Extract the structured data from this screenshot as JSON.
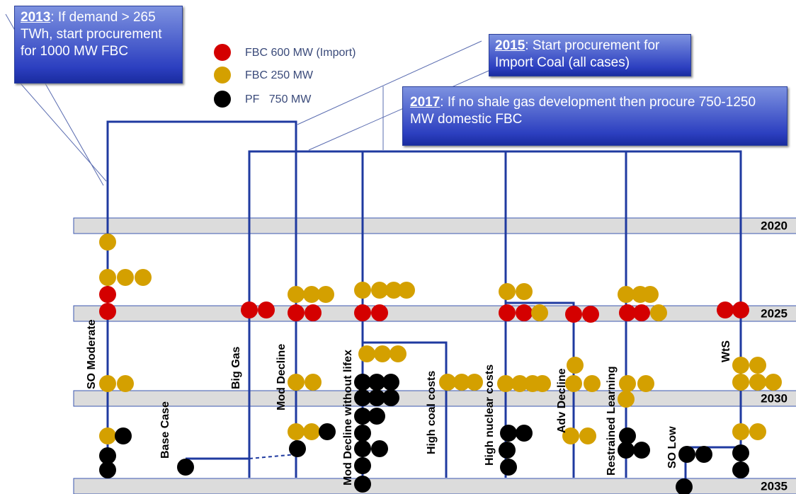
{
  "callouts": [
    {
      "year": "2013",
      "text": ": If demand > 265 TWh, start procurement for 1000 MW FBC"
    },
    {
      "year": "2015",
      "text": ": Start procurement for Import Coal (all cases)"
    },
    {
      "year": "2017",
      "text": ": If no shale gas development then procure 750-1250 MW domestic FBC"
    }
  ],
  "legend": [
    "FBC 600 MW (Import)",
    "FBC 250 MW",
    "PF   750 MW"
  ],
  "years": [
    "2020",
    "2025",
    "2030",
    "2035"
  ],
  "scenarios": [
    "SO Moderate",
    "Base Case",
    "Big Gas",
    "Mod Decline",
    "Mod Decline without lifex",
    "High coal costs",
    "High nuclear costs",
    "Adv Decline",
    "Restrained Learning",
    "SO Low",
    "WtS"
  ]
}
